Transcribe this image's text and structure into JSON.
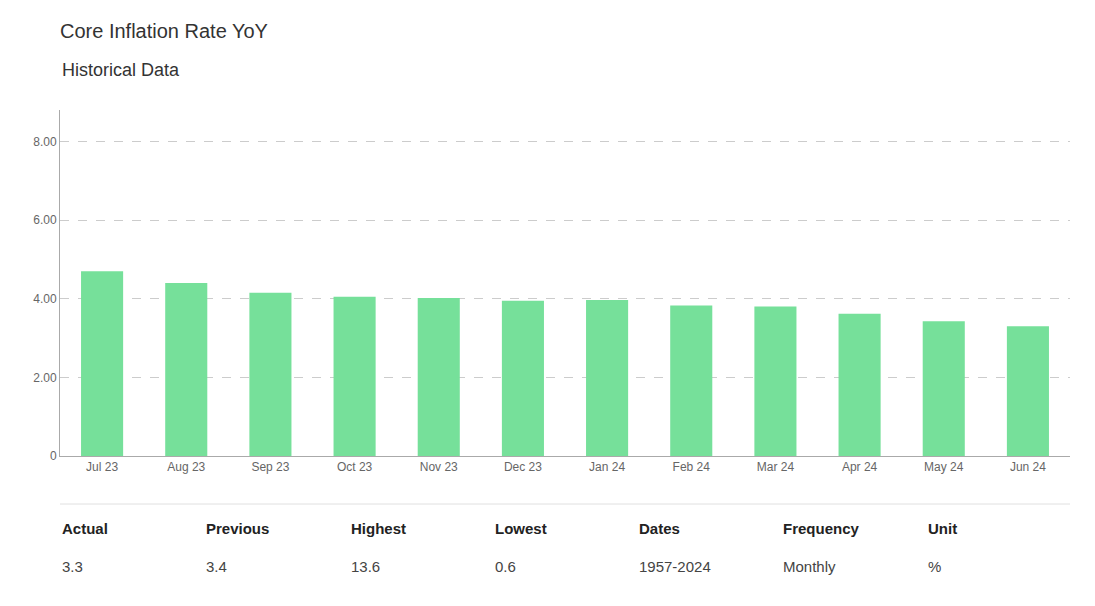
{
  "chart_data": {
    "type": "bar",
    "title": "Core Inflation Rate YoY",
    "subtitle": "Historical Data",
    "categories": [
      "Jul 23",
      "Aug 23",
      "Sep 23",
      "Oct 23",
      "Nov 23",
      "Dec 23",
      "Jan 24",
      "Feb 24",
      "Mar 24",
      "Apr 24",
      "May 24",
      "Jun 24"
    ],
    "values": [
      4.7,
      4.4,
      4.15,
      4.05,
      4.02,
      3.95,
      3.97,
      3.83,
      3.8,
      3.62,
      3.43,
      3.3
    ],
    "color": "#76e09a",
    "ylim": [
      0,
      8.8
    ],
    "yticks": [
      0,
      {
        "value": 2.0,
        "label": "2.00"
      },
      {
        "value": 4.0,
        "label": "4.00"
      },
      {
        "value": 6.0,
        "label": "6.00"
      },
      {
        "value": 8.0,
        "label": "8.00"
      }
    ],
    "grid": true,
    "annotations": [
      {
        "label": "Actual",
        "value": "3.3"
      },
      {
        "label": "Previous",
        "value": "3.4"
      },
      {
        "label": "Highest",
        "value": "13.6"
      },
      {
        "label": "Lowest",
        "value": "0.6"
      },
      {
        "label": "Dates",
        "value": "1957-2024"
      },
      {
        "label": "Frequency",
        "value": "Monthly"
      },
      {
        "label": "Unit",
        "value": "%"
      }
    ]
  }
}
